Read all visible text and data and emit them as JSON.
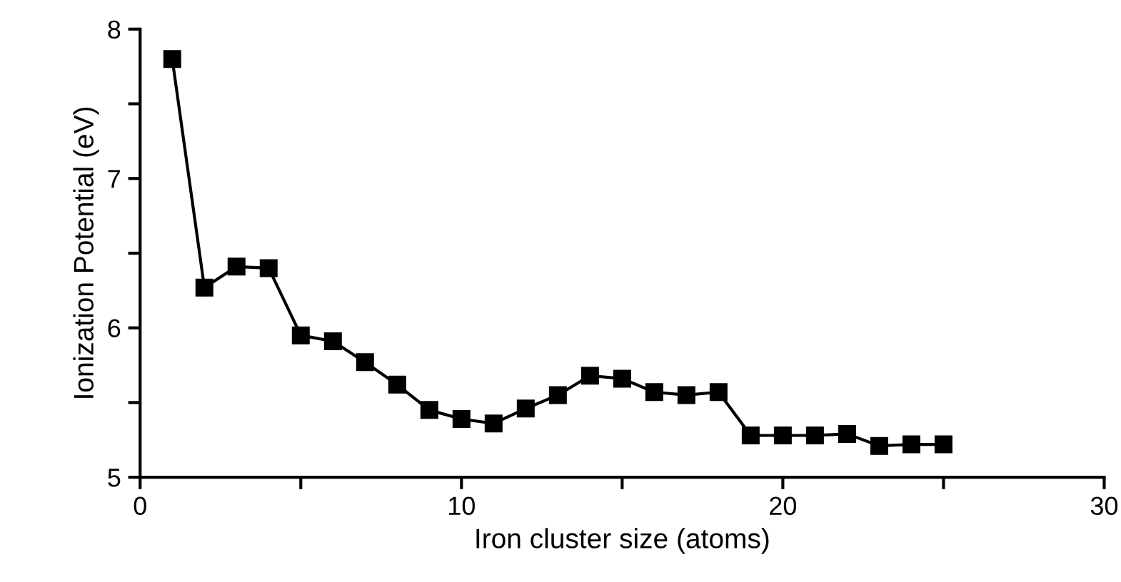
{
  "chart_data": {
    "type": "line",
    "xlabel": "Iron cluster size (atoms)",
    "ylabel": "Ionization Potential (eV)",
    "x": [
      1,
      2,
      3,
      4,
      5,
      6,
      7,
      8,
      9,
      10,
      11,
      12,
      13,
      14,
      15,
      16,
      17,
      18,
      19,
      20,
      21,
      22,
      23,
      24,
      25
    ],
    "values": [
      7.8,
      6.27,
      6.41,
      6.4,
      5.95,
      5.91,
      5.77,
      5.62,
      5.45,
      5.39,
      5.36,
      5.46,
      5.55,
      5.68,
      5.66,
      5.57,
      5.55,
      5.57,
      5.28,
      5.28,
      5.28,
      5.29,
      5.21,
      5.22,
      5.22
    ],
    "color": "#000000",
    "marker": "square",
    "line_style": "solid",
    "xlim": [
      0,
      30
    ],
    "ylim": [
      5,
      8
    ],
    "xticks": [
      0,
      {
        "value": 5,
        "label": null
      },
      10,
      {
        "value": 15,
        "label": null
      },
      20,
      {
        "value": 25,
        "label": null
      },
      30
    ],
    "yticks": [
      5,
      {
        "value": 5.5,
        "label": null
      },
      6,
      {
        "value": 6.5,
        "label": null
      },
      7,
      {
        "value": 7.5,
        "label": null
      },
      8
    ],
    "grid": false,
    "legend": false
  }
}
